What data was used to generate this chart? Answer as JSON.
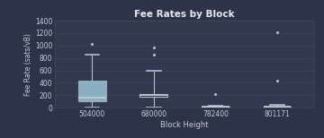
{
  "title": "Fee Rates by Block",
  "xlabel": "Block Height",
  "ylabel": "Fee Rate (sats/vB)",
  "background_color": "#2d3348",
  "plot_bg_color": "#323850",
  "grid_color": "#3d4a5e",
  "text_color": "#c8ccd8",
  "title_color": "#e8eaf0",
  "ylim": [
    0,
    1400
  ],
  "yticks": [
    0,
    200,
    400,
    600,
    800,
    1000,
    1200,
    1400
  ],
  "boxes": [
    {
      "label": "504000",
      "q1": 100,
      "median": 155,
      "q3": 435,
      "whislo": 2,
      "whishi": 850,
      "fliers": [
        1020
      ]
    },
    {
      "label": "680000",
      "q1": 170,
      "median": 205,
      "q3": 225,
      "whislo": 2,
      "whishi": 600,
      "fliers": [
        850,
        975
      ]
    },
    {
      "label": "782400",
      "q1": 5,
      "median": 10,
      "q3": 20,
      "whislo": 1,
      "whishi": 30,
      "fliers": [
        220
      ]
    },
    {
      "label": "801171",
      "q1": 5,
      "median": 12,
      "q3": 22,
      "whislo": 1,
      "whishi": 45,
      "fliers": [
        440,
        1220
      ]
    }
  ],
  "box_facecolor_first": "#a8d8e8",
  "box_facecolor_rest": "#323850",
  "box_edgecolor": "#b0bec5",
  "median_color": "#c8ccd8",
  "whisker_color": "#b0bec5",
  "cap_color": "#b0bec5",
  "flier_color": "#b0bec5",
  "flier_marker": ".",
  "flier_size": 2.5
}
